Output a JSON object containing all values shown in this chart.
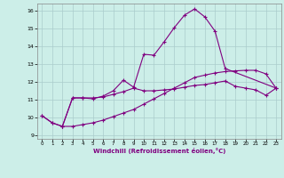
{
  "xlabel": "Windchill (Refroidissement éolien,°C)",
  "background_color": "#cceee8",
  "line_color": "#800080",
  "grid_color": "#aacccc",
  "xlim": [
    -0.5,
    23.5
  ],
  "ylim": [
    8.8,
    16.4
  ],
  "xticks": [
    0,
    1,
    2,
    3,
    4,
    5,
    6,
    7,
    8,
    9,
    10,
    11,
    12,
    13,
    14,
    15,
    16,
    17,
    18,
    19,
    20,
    21,
    22,
    23
  ],
  "yticks": [
    9,
    10,
    11,
    12,
    13,
    14,
    15,
    16
  ],
  "series1_x": [
    0,
    1,
    2,
    3,
    4,
    5,
    6,
    7,
    8,
    9,
    10,
    11,
    12,
    13,
    14,
    15,
    16,
    17,
    18,
    19,
    20,
    21,
    22,
    23
  ],
  "series1_y": [
    10.1,
    9.7,
    9.5,
    11.1,
    11.1,
    11.1,
    11.15,
    11.3,
    11.45,
    11.65,
    11.5,
    11.5,
    11.55,
    11.6,
    11.7,
    11.8,
    11.85,
    11.95,
    12.05,
    11.75,
    11.65,
    11.55,
    11.25,
    11.65
  ],
  "series2_x": [
    0,
    1,
    2,
    3,
    4,
    5,
    6,
    7,
    8,
    9,
    10,
    11,
    12,
    13,
    14,
    15,
    16,
    17,
    18,
    19,
    20,
    21,
    22,
    23
  ],
  "series2_y": [
    10.1,
    9.7,
    9.5,
    9.5,
    9.6,
    9.7,
    9.85,
    10.05,
    10.25,
    10.45,
    10.75,
    11.05,
    11.35,
    11.65,
    11.95,
    12.25,
    12.38,
    12.5,
    12.58,
    12.62,
    12.65,
    12.65,
    12.45,
    11.65
  ],
  "series3_x": [
    2,
    3,
    4,
    5,
    6,
    7,
    8,
    9,
    10,
    11,
    12,
    13,
    14,
    15,
    16,
    17,
    18,
    23
  ],
  "series3_y": [
    9.5,
    11.1,
    11.1,
    11.05,
    11.2,
    11.5,
    12.1,
    11.7,
    13.55,
    13.5,
    14.25,
    15.05,
    15.75,
    16.1,
    15.65,
    14.85,
    12.75,
    11.65
  ]
}
